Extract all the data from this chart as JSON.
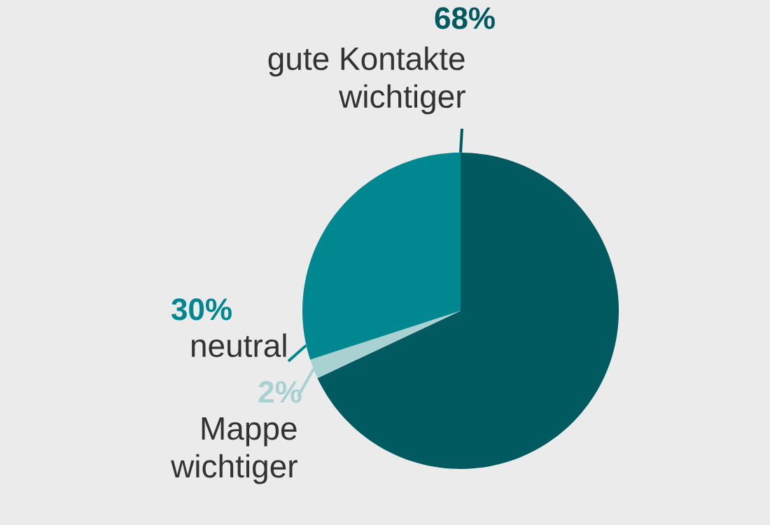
{
  "chart_data": {
    "type": "pie",
    "categories": [
      "gute Kontakte wichtiger",
      "Mappe wichtiger",
      "neutral"
    ],
    "values": [
      68,
      2,
      30
    ],
    "colors": [
      "#005a60",
      "#a9d1d1",
      "#00878f"
    ],
    "value_labels": [
      "68%",
      "2%",
      "30%"
    ]
  }
}
